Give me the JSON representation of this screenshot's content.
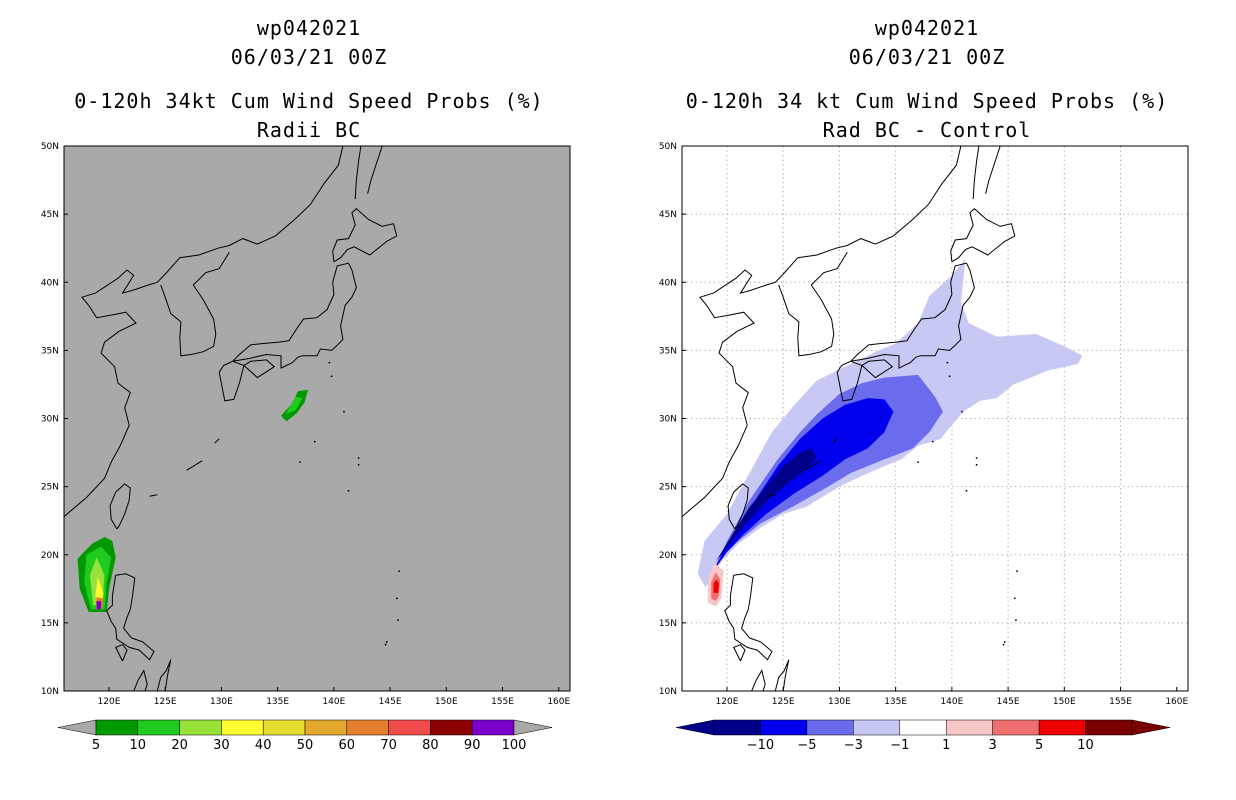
{
  "left_panel": {
    "title_lines": [
      "wp042021",
      "06/03/21 00Z",
      "0-120h 34kt Cum Wind Speed Probs (%)",
      "Radii BC"
    ],
    "background_color": "#a9a9a9",
    "colorbar": {
      "labels": [
        "5",
        "10",
        "20",
        "30",
        "40",
        "50",
        "60",
        "70",
        "80",
        "90",
        "100"
      ],
      "colors": [
        "#009900",
        "#1ecb1e",
        "#97e23a",
        "#fffe30",
        "#e6dc32",
        "#e3a92c",
        "#e57f2c",
        "#f14b4b",
        "#8b0000",
        "#7a00cc"
      ]
    }
  },
  "right_panel": {
    "title_lines": [
      "wp042021",
      "06/03/21 00Z",
      "0-120h 34 kt Cum Wind Speed Probs (%)",
      "Rad BC - Control"
    ],
    "background_color": "#ffffff",
    "colorbar": {
      "labels": [
        "−10",
        "−5",
        "−3",
        "−1",
        "1",
        "3",
        "5",
        "10"
      ],
      "colors": [
        "#00008b",
        "#0000ee",
        "#6b6bee",
        "#c8c8f5",
        "#ffffff",
        "#f7c6c6",
        "#f07070",
        "#ee0000",
        "#7a0000"
      ]
    }
  },
  "chart_data": [
    {
      "type": "heatmap",
      "title": "0-120h 34kt Cum Wind Speed Probs (%)",
      "subtitle": "Radii BC",
      "storm": "wp042021",
      "valid": "06/03/21 00Z",
      "xlim": [
        116,
        161
      ],
      "ylim": [
        10,
        50
      ],
      "x_ticks": [
        "120E",
        "125E",
        "130E",
        "135E",
        "140E",
        "145E",
        "150E",
        "155E",
        "160E"
      ],
      "y_ticks": [
        "10N",
        "15N",
        "20N",
        "25N",
        "30N",
        "35N",
        "40N",
        "45N",
        "50N"
      ],
      "levels": [
        5,
        10,
        20,
        30,
        40,
        50,
        60,
        70,
        80,
        90,
        100
      ],
      "grid": false,
      "regions": [
        {
          "name": "main_swath",
          "level": 5,
          "polygon": [
            [
              119.6,
              21.3
            ],
            [
              118.5,
              20.8
            ],
            [
              117.2,
              19.7
            ],
            [
              117.4,
              17.5
            ],
            [
              118.2,
              15.8
            ],
            [
              119.8,
              15.8
            ],
            [
              120.0,
              17.5
            ],
            [
              120.6,
              19.8
            ],
            [
              120.3,
              21.0
            ]
          ]
        },
        {
          "name": "main_swath",
          "level": 10,
          "polygon": [
            [
              119.3,
              20.6
            ],
            [
              118.0,
              20.0
            ],
            [
              117.8,
              18.0
            ],
            [
              118.4,
              16.0
            ],
            [
              119.6,
              16.0
            ],
            [
              119.8,
              18.0
            ],
            [
              120.2,
              19.8
            ]
          ]
        },
        {
          "name": "main_swath",
          "level": 20,
          "polygon": [
            [
              118.9,
              19.8
            ],
            [
              118.3,
              18.5
            ],
            [
              118.6,
              16.3
            ],
            [
              119.4,
              16.3
            ],
            [
              119.6,
              18.5
            ]
          ]
        },
        {
          "name": "main_swath",
          "level": 30,
          "polygon": [
            [
              119.0,
              18.4
            ],
            [
              118.8,
              17.0
            ],
            [
              119.0,
              16.0
            ],
            [
              119.4,
              16.0
            ],
            [
              119.5,
              17.2
            ]
          ]
        },
        {
          "name": "main_swath",
          "level": 60,
          "polygon": [
            [
              118.9,
              16.9
            ],
            [
              118.8,
              16.0
            ],
            [
              119.4,
              16.0
            ],
            [
              119.5,
              16.8
            ]
          ]
        },
        {
          "name": "main_swath",
          "level": 90,
          "polygon": [
            [
              118.9,
              16.6
            ],
            [
              118.9,
              16.0
            ],
            [
              119.3,
              16.0
            ],
            [
              119.3,
              16.6
            ]
          ]
        },
        {
          "name": "japan_blob",
          "level": 5,
          "polygon": [
            [
              135.3,
              30.2
            ],
            [
              135.8,
              29.8
            ],
            [
              136.7,
              30.4
            ],
            [
              137.4,
              31.2
            ],
            [
              137.7,
              32.1
            ],
            [
              136.8,
              32.0
            ],
            [
              136.3,
              31.1
            ]
          ]
        },
        {
          "name": "japan_blob",
          "level": 10,
          "polygon": [
            [
              135.7,
              30.3
            ],
            [
              136.6,
              30.6
            ],
            [
              137.2,
              31.5
            ],
            [
              136.6,
              31.6
            ],
            [
              136.1,
              30.9
            ]
          ]
        }
      ]
    },
    {
      "type": "heatmap",
      "title": "0-120h 34 kt Cum Wind Speed Probs (%)",
      "subtitle": "Rad BC - Control",
      "storm": "wp042021",
      "valid": "06/03/21 00Z",
      "xlim": [
        116,
        161
      ],
      "ylim": [
        10,
        50
      ],
      "x_ticks": [
        "120E",
        "125E",
        "130E",
        "135E",
        "140E",
        "145E",
        "150E",
        "155E",
        "160E"
      ],
      "y_ticks": [
        "10N",
        "15N",
        "20N",
        "25N",
        "30N",
        "35N",
        "40N",
        "45N",
        "50N"
      ],
      "levels": [
        -10,
        -5,
        -3,
        -1,
        1,
        3,
        5,
        10
      ],
      "grid": true,
      "regions": [
        {
          "name": "difference_swath",
          "level": -1,
          "polygon": [
            [
              118.1,
              17.6
            ],
            [
              117.4,
              18.6
            ],
            [
              118.0,
              21.0
            ],
            [
              120.0,
              23.0
            ],
            [
              122.0,
              26.0
            ],
            [
              124.0,
              29.0
            ],
            [
              126.0,
              31.0
            ],
            [
              128.0,
              32.8
            ],
            [
              131.0,
              34.0
            ],
            [
              133.5,
              35.0
            ],
            [
              135.0,
              35.5
            ],
            [
              137.0,
              37.0
            ],
            [
              138.0,
              39.0
            ],
            [
              140.0,
              40.5
            ],
            [
              141.2,
              41.7
            ],
            [
              140.8,
              38.5
            ],
            [
              141.5,
              37.0
            ],
            [
              144.0,
              36.0
            ],
            [
              147.5,
              36.2
            ],
            [
              150.0,
              35.3
            ],
            [
              151.6,
              34.6
            ],
            [
              151.2,
              34.0
            ],
            [
              148.5,
              33.5
            ],
            [
              147.0,
              33.0
            ],
            [
              145.5,
              32.5
            ],
            [
              144.0,
              31.5
            ],
            [
              142.5,
              31.3
            ],
            [
              141.0,
              30.5
            ],
            [
              140.0,
              29.5
            ],
            [
              139.0,
              28.5
            ],
            [
              137.0,
              28.0
            ],
            [
              135.5,
              27.0
            ],
            [
              134.0,
              26.5
            ],
            [
              132.0,
              25.8
            ],
            [
              130.0,
              25.0
            ],
            [
              127.0,
              23.5
            ],
            [
              125.0,
              23.0
            ],
            [
              123.0,
              22.0
            ],
            [
              121.0,
              20.8
            ],
            [
              119.5,
              19.5
            ]
          ]
        },
        {
          "name": "difference_swath",
          "level": -3,
          "polygon": [
            [
              118.5,
              18.3
            ],
            [
              120.0,
              21.0
            ],
            [
              122.0,
              24.0
            ],
            [
              124.5,
              27.0
            ],
            [
              126.5,
              29.0
            ],
            [
              128.0,
              30.3
            ],
            [
              130.0,
              31.8
            ],
            [
              132.0,
              32.6
            ],
            [
              134.0,
              33.0
            ],
            [
              137.0,
              33.2
            ],
            [
              138.5,
              31.6
            ],
            [
              139.2,
              30.5
            ],
            [
              138.0,
              29.0
            ],
            [
              136.5,
              27.8
            ],
            [
              134.0,
              27.0
            ],
            [
              131.0,
              26.0
            ],
            [
              129.0,
              25.0
            ],
            [
              126.0,
              23.6
            ],
            [
              123.0,
              22.3
            ],
            [
              121.0,
              21.0
            ],
            [
              119.5,
              19.8
            ]
          ]
        },
        {
          "name": "difference_swath",
          "level": -5,
          "polygon": [
            [
              118.7,
              18.7
            ],
            [
              120.5,
              21.5
            ],
            [
              122.5,
              24.0
            ],
            [
              124.5,
              26.5
            ],
            [
              126.5,
              28.5
            ],
            [
              128.5,
              30.0
            ],
            [
              130.5,
              31.0
            ],
            [
              132.5,
              31.5
            ],
            [
              134.0,
              31.4
            ],
            [
              134.8,
              30.5
            ],
            [
              134.0,
              29.0
            ],
            [
              132.5,
              27.8
            ],
            [
              130.5,
              27.0
            ],
            [
              128.5,
              25.8
            ],
            [
              126.0,
              24.5
            ],
            [
              123.5,
              23.0
            ],
            [
              121.5,
              21.5
            ],
            [
              120.0,
              20.2
            ]
          ]
        },
        {
          "name": "difference_swath",
          "level": -10,
          "polygon": [
            [
              119.0,
              19.5
            ],
            [
              120.5,
              21.5
            ],
            [
              122.0,
              23.5
            ],
            [
              123.5,
              25.0
            ],
            [
              125.0,
              26.5
            ],
            [
              126.5,
              27.5
            ],
            [
              127.5,
              27.8
            ],
            [
              128.0,
              27.2
            ],
            [
              127.0,
              26.2
            ],
            [
              125.5,
              25.3
            ],
            [
              124.0,
              24.3
            ],
            [
              122.5,
              23.0
            ],
            [
              121.0,
              21.6
            ],
            [
              119.8,
              20.3
            ]
          ]
        },
        {
          "name": "positive_spot",
          "level": 1,
          "polygon": [
            [
              118.3,
              16.5
            ],
            [
              118.3,
              18.3
            ],
            [
              118.9,
              19.4
            ],
            [
              119.7,
              18.8
            ],
            [
              119.5,
              16.8
            ],
            [
              119.0,
              16.2
            ]
          ]
        },
        {
          "name": "positive_spot",
          "level": 3,
          "polygon": [
            [
              118.6,
              16.8
            ],
            [
              118.6,
              18.0
            ],
            [
              119.0,
              18.7
            ],
            [
              119.4,
              18.2
            ],
            [
              119.3,
              17.0
            ],
            [
              119.0,
              16.6
            ]
          ]
        },
        {
          "name": "positive_spot",
          "level": 5,
          "polygon": [
            [
              118.8,
              17.2
            ],
            [
              118.8,
              17.9
            ],
            [
              119.1,
              18.2
            ],
            [
              119.3,
              17.8
            ],
            [
              119.2,
              17.2
            ]
          ]
        }
      ]
    }
  ]
}
